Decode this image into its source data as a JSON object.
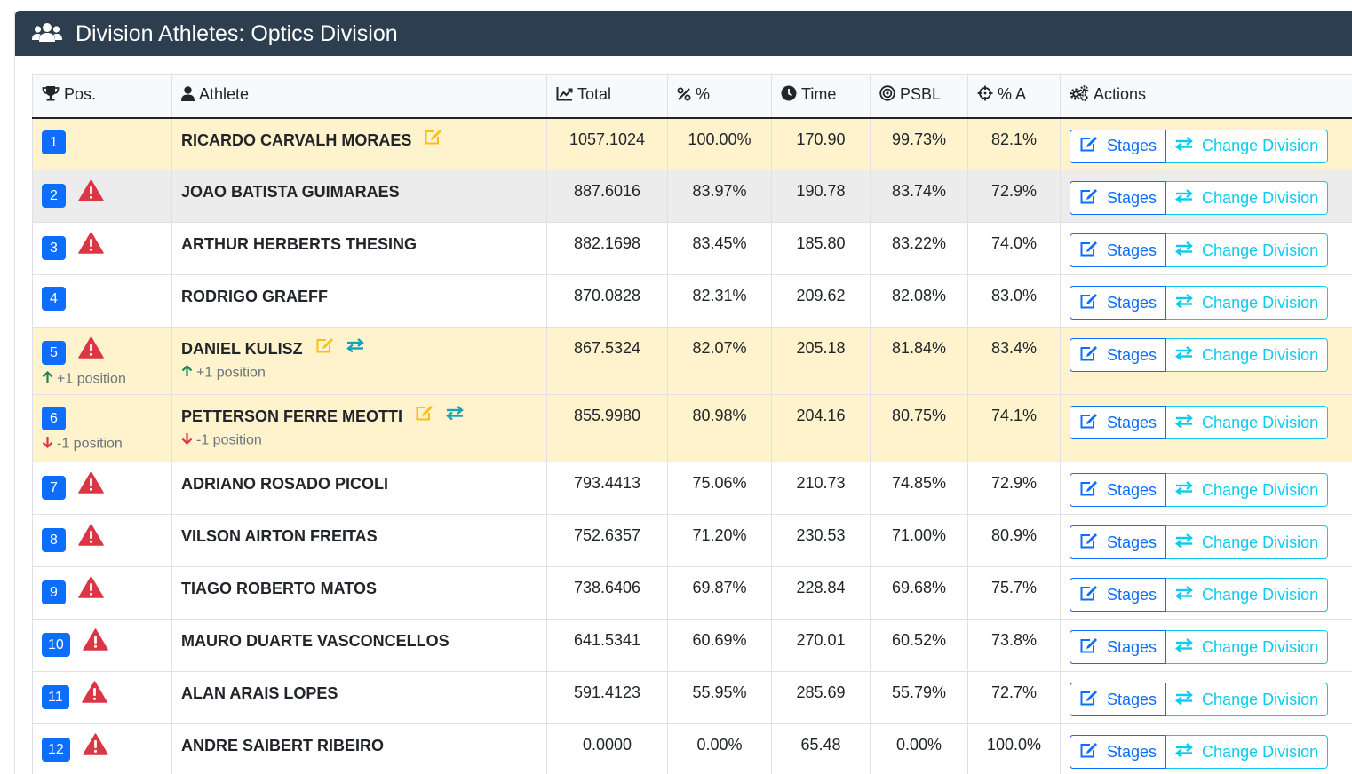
{
  "header": {
    "title": "Division Athletes: Optics Division",
    "icon": "users-icon",
    "bg_color": "#2c3e50"
  },
  "columns": {
    "pos": "Pos.",
    "athlete": "Athlete",
    "total": "Total",
    "pct": "%",
    "time": "Time",
    "psbl": "PSBL",
    "pct_a": "% A",
    "actions": "Actions"
  },
  "actions": {
    "stages_label": "Stages",
    "change_label": "Change Division"
  },
  "colors": {
    "badge": "#0d6efd",
    "warning": "#dc3545",
    "highlight_row": "#fff3cd",
    "edit_icon": "#ffc107",
    "up": "#198754",
    "down": "#dc3545"
  },
  "rows": [
    {
      "pos": "1",
      "warn": false,
      "name": "RICARDO CARVALH MORAES",
      "edited": true,
      "transferred": false,
      "pos_move": "",
      "ath_move": "",
      "move_dir": "",
      "total": "1057.1024",
      "pct": "100.00%",
      "time": "170.90",
      "psbl": "99.73%",
      "pct_a": "82.1%",
      "style": "warn"
    },
    {
      "pos": "2",
      "warn": true,
      "name": "JOAO BATISTA GUIMARAES",
      "edited": false,
      "transferred": false,
      "pos_move": "",
      "ath_move": "",
      "move_dir": "",
      "total": "887.6016",
      "pct": "83.97%",
      "time": "190.78",
      "psbl": "83.74%",
      "pct_a": "72.9%",
      "style": "grey"
    },
    {
      "pos": "3",
      "warn": true,
      "name": "ARTHUR HERBERTS THESING",
      "edited": false,
      "transferred": false,
      "pos_move": "",
      "ath_move": "",
      "move_dir": "",
      "total": "882.1698",
      "pct": "83.45%",
      "time": "185.80",
      "psbl": "83.22%",
      "pct_a": "74.0%",
      "style": "plain"
    },
    {
      "pos": "4",
      "warn": false,
      "name": "RODRIGO GRAEFF",
      "edited": false,
      "transferred": false,
      "pos_move": "",
      "ath_move": "",
      "move_dir": "",
      "total": "870.0828",
      "pct": "82.31%",
      "time": "209.62",
      "psbl": "82.08%",
      "pct_a": "83.0%",
      "style": "plain"
    },
    {
      "pos": "5",
      "warn": true,
      "name": "DANIEL KULISZ",
      "edited": true,
      "transferred": true,
      "pos_move": "+1 position",
      "ath_move": "+1 position",
      "move_dir": "up",
      "total": "867.5324",
      "pct": "82.07%",
      "time": "205.18",
      "psbl": "81.84%",
      "pct_a": "83.4%",
      "style": "warn"
    },
    {
      "pos": "6",
      "warn": false,
      "name": "PETTERSON FERRE MEOTTI",
      "edited": true,
      "transferred": true,
      "pos_move": "-1 position",
      "ath_move": "-1 position",
      "move_dir": "down",
      "total": "855.9980",
      "pct": "80.98%",
      "time": "204.16",
      "psbl": "80.75%",
      "pct_a": "74.1%",
      "style": "warn"
    },
    {
      "pos": "7",
      "warn": true,
      "name": "ADRIANO ROSADO PICOLI",
      "edited": false,
      "transferred": false,
      "pos_move": "",
      "ath_move": "",
      "move_dir": "",
      "total": "793.4413",
      "pct": "75.06%",
      "time": "210.73",
      "psbl": "74.85%",
      "pct_a": "72.9%",
      "style": "plain"
    },
    {
      "pos": "8",
      "warn": true,
      "name": "VILSON AIRTON FREITAS",
      "edited": false,
      "transferred": false,
      "pos_move": "",
      "ath_move": "",
      "move_dir": "",
      "total": "752.6357",
      "pct": "71.20%",
      "time": "230.53",
      "psbl": "71.00%",
      "pct_a": "80.9%",
      "style": "plain"
    },
    {
      "pos": "9",
      "warn": true,
      "name": "TIAGO ROBERTO MATOS",
      "edited": false,
      "transferred": false,
      "pos_move": "",
      "ath_move": "",
      "move_dir": "",
      "total": "738.6406",
      "pct": "69.87%",
      "time": "228.84",
      "psbl": "69.68%",
      "pct_a": "75.7%",
      "style": "plain"
    },
    {
      "pos": "10",
      "warn": true,
      "name": "MAURO DUARTE VASCONCELLOS",
      "edited": false,
      "transferred": false,
      "pos_move": "",
      "ath_move": "",
      "move_dir": "",
      "total": "641.5341",
      "pct": "60.69%",
      "time": "270.01",
      "psbl": "60.52%",
      "pct_a": "73.8%",
      "style": "plain"
    },
    {
      "pos": "11",
      "warn": true,
      "name": "ALAN ARAIS LOPES",
      "edited": false,
      "transferred": false,
      "pos_move": "",
      "ath_move": "",
      "move_dir": "",
      "total": "591.4123",
      "pct": "55.95%",
      "time": "285.69",
      "psbl": "55.79%",
      "pct_a": "72.7%",
      "style": "plain"
    },
    {
      "pos": "12",
      "warn": true,
      "name": "ANDRE SAIBERT RIBEIRO",
      "edited": false,
      "transferred": false,
      "pos_move": "",
      "ath_move": "",
      "move_dir": "",
      "total": "0.0000",
      "pct": "0.00%",
      "time": "65.48",
      "psbl": "0.00%",
      "pct_a": "100.0%",
      "style": "plain"
    }
  ]
}
